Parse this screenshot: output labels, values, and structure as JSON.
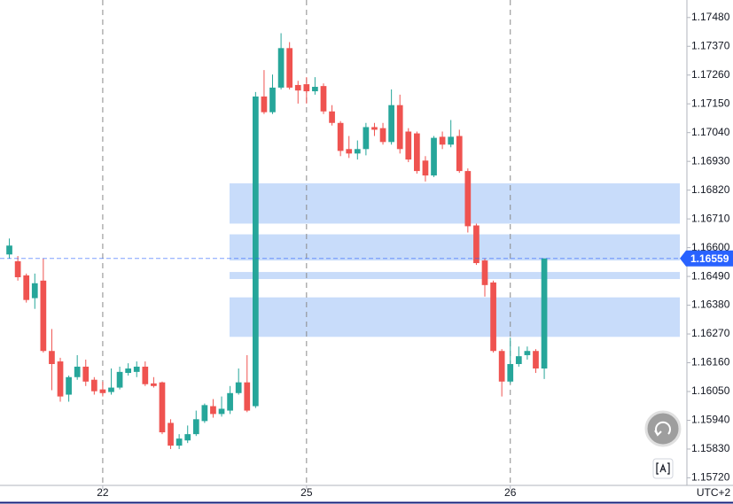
{
  "chart_data": {
    "type": "candlestick",
    "x": [
      -11,
      -10,
      -9,
      -8,
      -7,
      -6,
      -5,
      -4,
      -3,
      -2,
      -1,
      0,
      1,
      2,
      3,
      4,
      5,
      6,
      7,
      8,
      9,
      10,
      11,
      12,
      13,
      14,
      15,
      16,
      17,
      18,
      19,
      20,
      21,
      22,
      23,
      24,
      25,
      26,
      27,
      28,
      29,
      30,
      31,
      32,
      33,
      34,
      35,
      36,
      37,
      38,
      39,
      40,
      41,
      42,
      43,
      44,
      45,
      46,
      47,
      48,
      49,
      50,
      51,
      52
    ],
    "open": [
      1.16574,
      1.16548,
      1.16494,
      1.16407,
      1.16474,
      1.16205,
      1.16165,
      1.16038,
      1.16105,
      1.16145,
      1.16095,
      1.16058,
      1.16048,
      1.16065,
      1.16121,
      1.16125,
      1.16145,
      1.16081,
      1.16085,
      1.1593,
      1.15843,
      1.15863,
      1.15887,
      1.15937,
      1.15994,
      1.15964,
      1.15977,
      1.16044,
      1.16085,
      1.15994,
      1.17178,
      1.17118,
      1.17212,
      1.17363,
      1.17222,
      1.17225,
      1.17198,
      1.17218,
      1.17121,
      1.17077,
      1.16977,
      1.1696,
      1.16977,
      1.17061,
      1.17057,
      1.17004,
      1.17145,
      1.17044,
      1.17037,
      1.16933,
      1.16876,
      1.17024,
      1.16994,
      1.17027,
      1.16893,
      1.16685,
      1.16551,
      1.16467,
      1.16205,
      1.16088,
      1.16155,
      1.16189,
      1.16205,
      1.16138
    ],
    "high": [
      1.16635,
      1.16568,
      1.16501,
      1.16501,
      1.16558,
      1.16289,
      1.16179,
      1.16111,
      1.16189,
      1.16172,
      1.16105,
      1.16088,
      1.16138,
      1.16145,
      1.16158,
      1.16165,
      1.16165,
      1.16105,
      1.16088,
      1.15944,
      1.15887,
      1.1592,
      1.15977,
      1.16004,
      1.16021,
      1.16031,
      1.16071,
      1.16138,
      1.16189,
      1.17195,
      1.17279,
      1.17262,
      1.1742,
      1.17386,
      1.17238,
      1.17252,
      1.17252,
      1.17228,
      1.17145,
      1.17084,
      1.17027,
      1.1701,
      1.17077,
      1.17077,
      1.17077,
      1.17205,
      1.17185,
      1.17057,
      1.17044,
      1.1695,
      1.17027,
      1.17044,
      1.17088,
      1.17051,
      1.16903,
      1.16692,
      1.16558,
      1.16474,
      1.16212,
      1.16256,
      1.16222,
      1.16222,
      1.16212,
      1.16558
    ],
    "low": [
      1.16558,
      1.16474,
      1.1639,
      1.16366,
      1.16199,
      1.16055,
      1.16011,
      1.16011,
      1.16095,
      1.16071,
      1.16038,
      1.16031,
      1.16038,
      1.16058,
      1.16111,
      1.16105,
      1.16071,
      1.16065,
      1.15887,
      1.1583,
      1.1583,
      1.15853,
      1.1588,
      1.1593,
      1.1595,
      1.15954,
      1.15964,
      1.16038,
      1.15971,
      1.15987,
      1.17111,
      1.17111,
      1.17205,
      1.17205,
      1.17151,
      1.17151,
      1.17185,
      1.17111,
      1.17067,
      1.1695,
      1.16943,
      1.16937,
      1.16953,
      1.17027,
      1.16994,
      1.16994,
      1.1696,
      1.16927,
      1.16883,
      1.16853,
      1.1687,
      1.16977,
      1.16984,
      1.16886,
      1.16658,
      1.16534,
      1.16413,
      1.16199,
      1.16031,
      1.16081,
      1.16145,
      1.16172,
      1.16121,
      1.16098
    ],
    "close": [
      1.16608,
      1.16487,
      1.164,
      1.16464,
      1.16205,
      1.16155,
      1.16031,
      1.16105,
      1.16145,
      1.16088,
      1.16051,
      1.16044,
      1.16065,
      1.16125,
      1.16138,
      1.16145,
      1.16078,
      1.16071,
      1.15894,
      1.15843,
      1.1587,
      1.15887,
      1.15944,
      1.15998,
      1.15964,
      1.15984,
      1.16044,
      1.16085,
      1.15977,
      1.17178,
      1.17118,
      1.17212,
      1.17363,
      1.17212,
      1.17201,
      1.17198,
      1.17215,
      1.17121,
      1.17077,
      1.1697,
      1.1696,
      1.16977,
      1.17061,
      1.17051,
      1.17004,
      1.17145,
      1.16977,
      1.16937,
      1.16893,
      1.16876,
      1.1702,
      1.16994,
      1.17024,
      1.16893,
      1.16682,
      1.16541,
      1.16457,
      1.16205,
      1.16088,
      1.16155,
      1.16185,
      1.16205,
      1.16138,
      1.16559
    ],
    "up_color": "#26a69a",
    "down_color": "#ef5350",
    "zones": [
      {
        "top": 1.16846,
        "bottom": 1.16692
      },
      {
        "top": 1.16651,
        "bottom": 1.16551
      },
      {
        "top": 1.16507,
        "bottom": 1.1648
      },
      {
        "top": 1.1641,
        "bottom": 1.16259
      }
    ],
    "zone_color": "#c5dafa",
    "last_price": 1.16559,
    "last_price_color": "#2962ff",
    "xlim": [
      -12.1,
      68.8
    ],
    "xticks": [
      {
        "value": 0,
        "label": "22"
      },
      {
        "value": 24,
        "label": "25"
      },
      {
        "value": 48,
        "label": "26"
      }
    ],
    "ylim": [
      1.15691,
      1.17547
    ],
    "yticks": [
      {
        "value": 1.1748,
        "label": "1.17480"
      },
      {
        "value": 1.1737,
        "label": "1.17370"
      },
      {
        "value": 1.1726,
        "label": "1.17260"
      },
      {
        "value": 1.1715,
        "label": "1.17150"
      },
      {
        "value": 1.1704,
        "label": "1.17040"
      },
      {
        "value": 1.1693,
        "label": "1.16930"
      },
      {
        "value": 1.1682,
        "label": "1.16820"
      },
      {
        "value": 1.1671,
        "label": "1.16710"
      },
      {
        "value": 1.166,
        "label": "1.16600"
      },
      {
        "value": 1.1649,
        "label": "1.16490"
      },
      {
        "value": 1.1638,
        "label": "1.16380"
      },
      {
        "value": 1.1627,
        "label": "1.16270"
      },
      {
        "value": 1.1616,
        "label": "1.16160"
      },
      {
        "value": 1.1605,
        "label": "1.16050"
      },
      {
        "value": 1.1594,
        "label": "1.15940"
      },
      {
        "value": 1.1583,
        "label": "1.15830"
      },
      {
        "value": 1.1572,
        "label": "1.15720"
      }
    ],
    "timezone": "UTC+2"
  }
}
